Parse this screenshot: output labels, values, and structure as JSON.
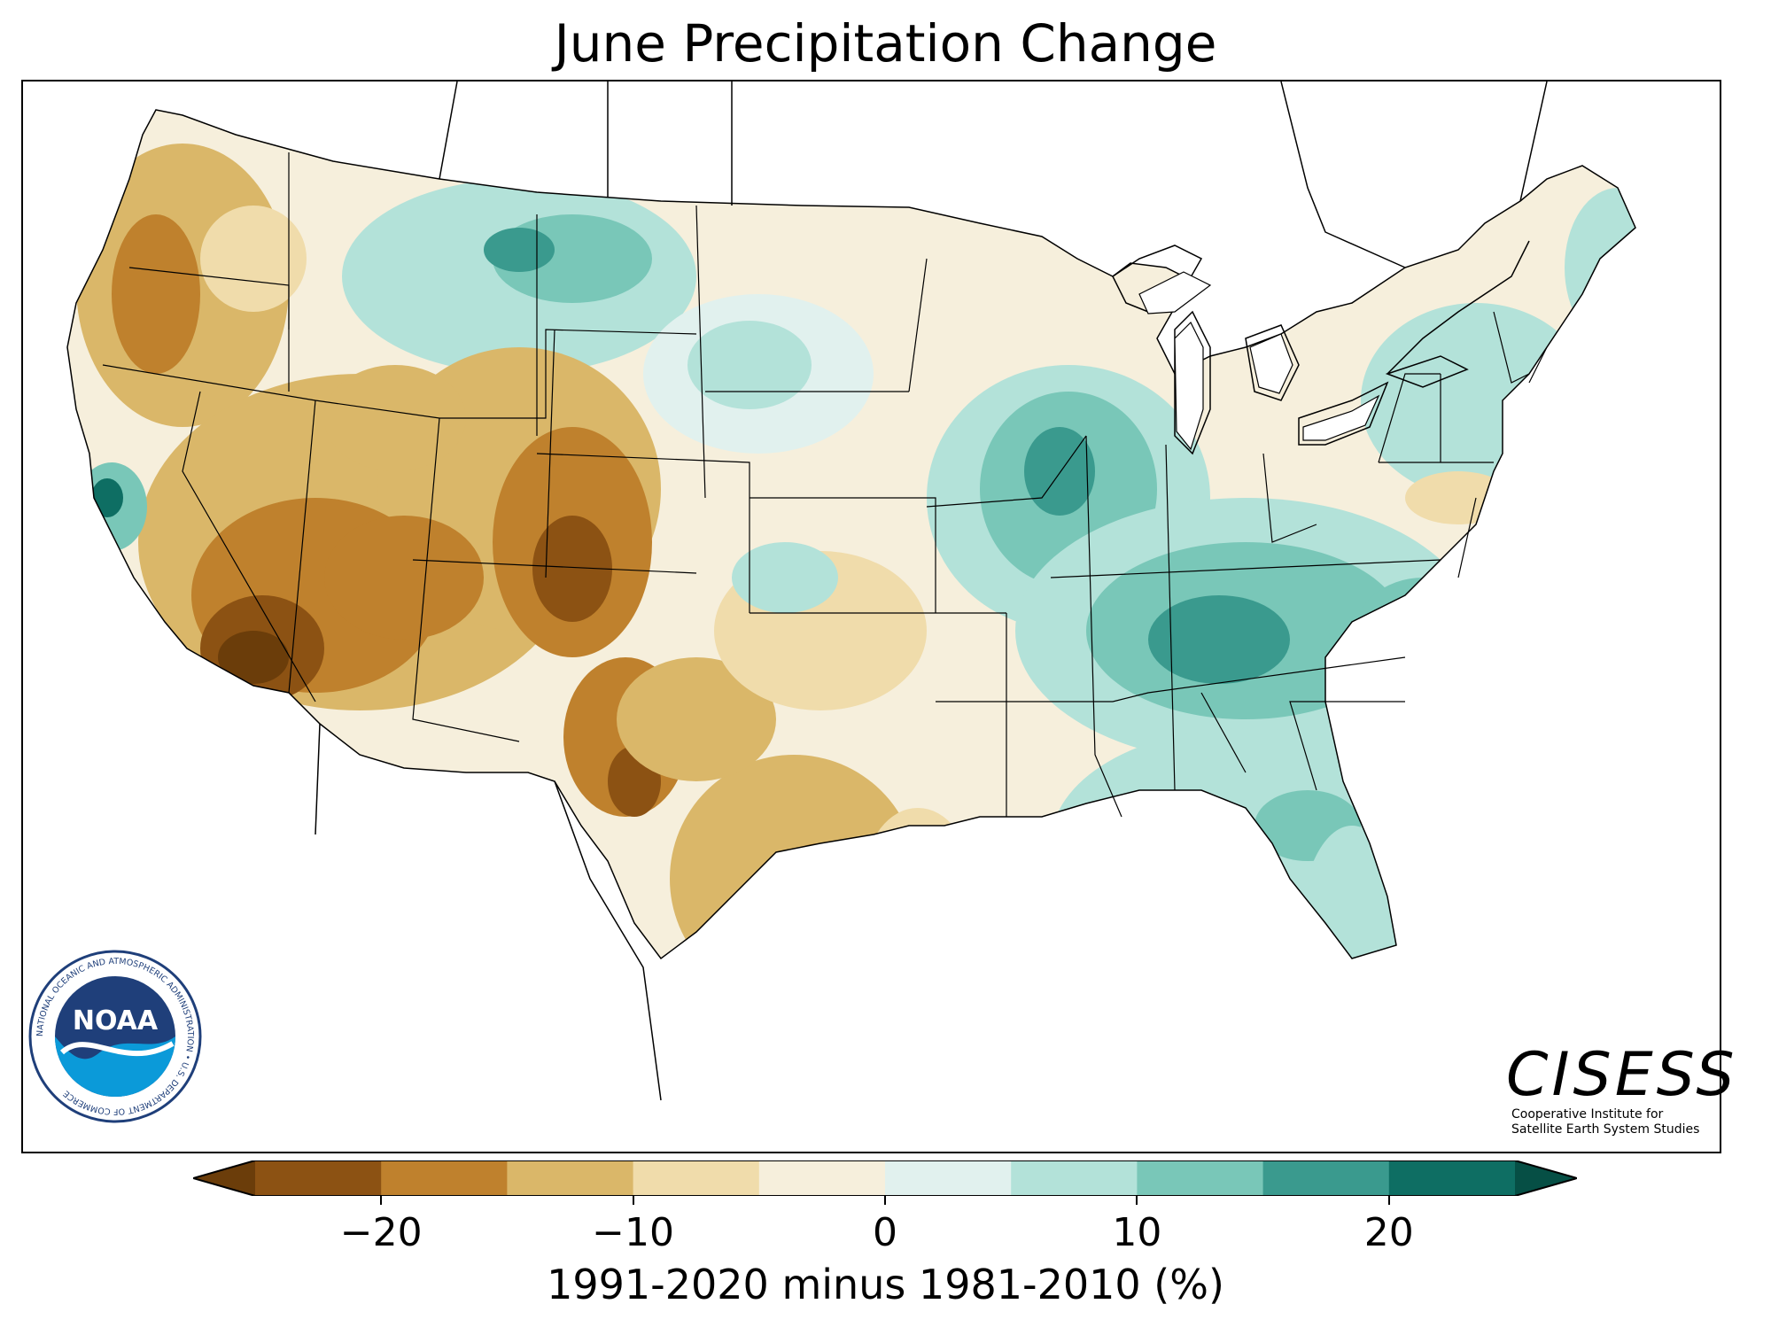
{
  "title": "June Precipitation Change",
  "colorbar": {
    "label": "1991-2020 minus 1981-2010 (%)",
    "ticks": [
      "−20",
      "−10",
      "0",
      "10",
      "20"
    ],
    "tick_values": [
      -20,
      -10,
      0,
      10,
      20
    ],
    "range": [
      -25,
      25
    ],
    "bins": [
      {
        "from": -25,
        "to": -20,
        "color": "#8c5213"
      },
      {
        "from": -20,
        "to": -15,
        "color": "#bf812d"
      },
      {
        "from": -15,
        "to": -10,
        "color": "#dab769"
      },
      {
        "from": -10,
        "to": -5,
        "color": "#f0dcab"
      },
      {
        "from": -5,
        "to": 0,
        "color": "#f6efdc"
      },
      {
        "from": 0,
        "to": 5,
        "color": "#e1f1ee"
      },
      {
        "from": 5,
        "to": 10,
        "color": "#b3e2d9"
      },
      {
        "from": 10,
        "to": 15,
        "color": "#79c7b8"
      },
      {
        "from": 15,
        "to": 20,
        "color": "#3a9a8e"
      },
      {
        "from": 20,
        "to": 25,
        "color": "#0e6e63"
      }
    ],
    "under_color": "#6b3d0a",
    "over_color": "#064f45"
  },
  "logos": {
    "noaa_ring_text": "NATIONAL OCEANIC AND ATMOSPHERIC ADMINISTRATION • U.S. DEPARTMENT OF COMMERCE",
    "noaa_center": "NOAA",
    "cisess_name": "CISESS",
    "cisess_line1": "Cooperative Institute for",
    "cisess_line2": "Satellite Earth System Studies"
  },
  "colors": {
    "dry_strong": "#6b3d0a",
    "dry": "#bf812d",
    "neutral": "#f6efdc",
    "wet": "#79c7b8",
    "wet_strong": "#0e6e63"
  }
}
